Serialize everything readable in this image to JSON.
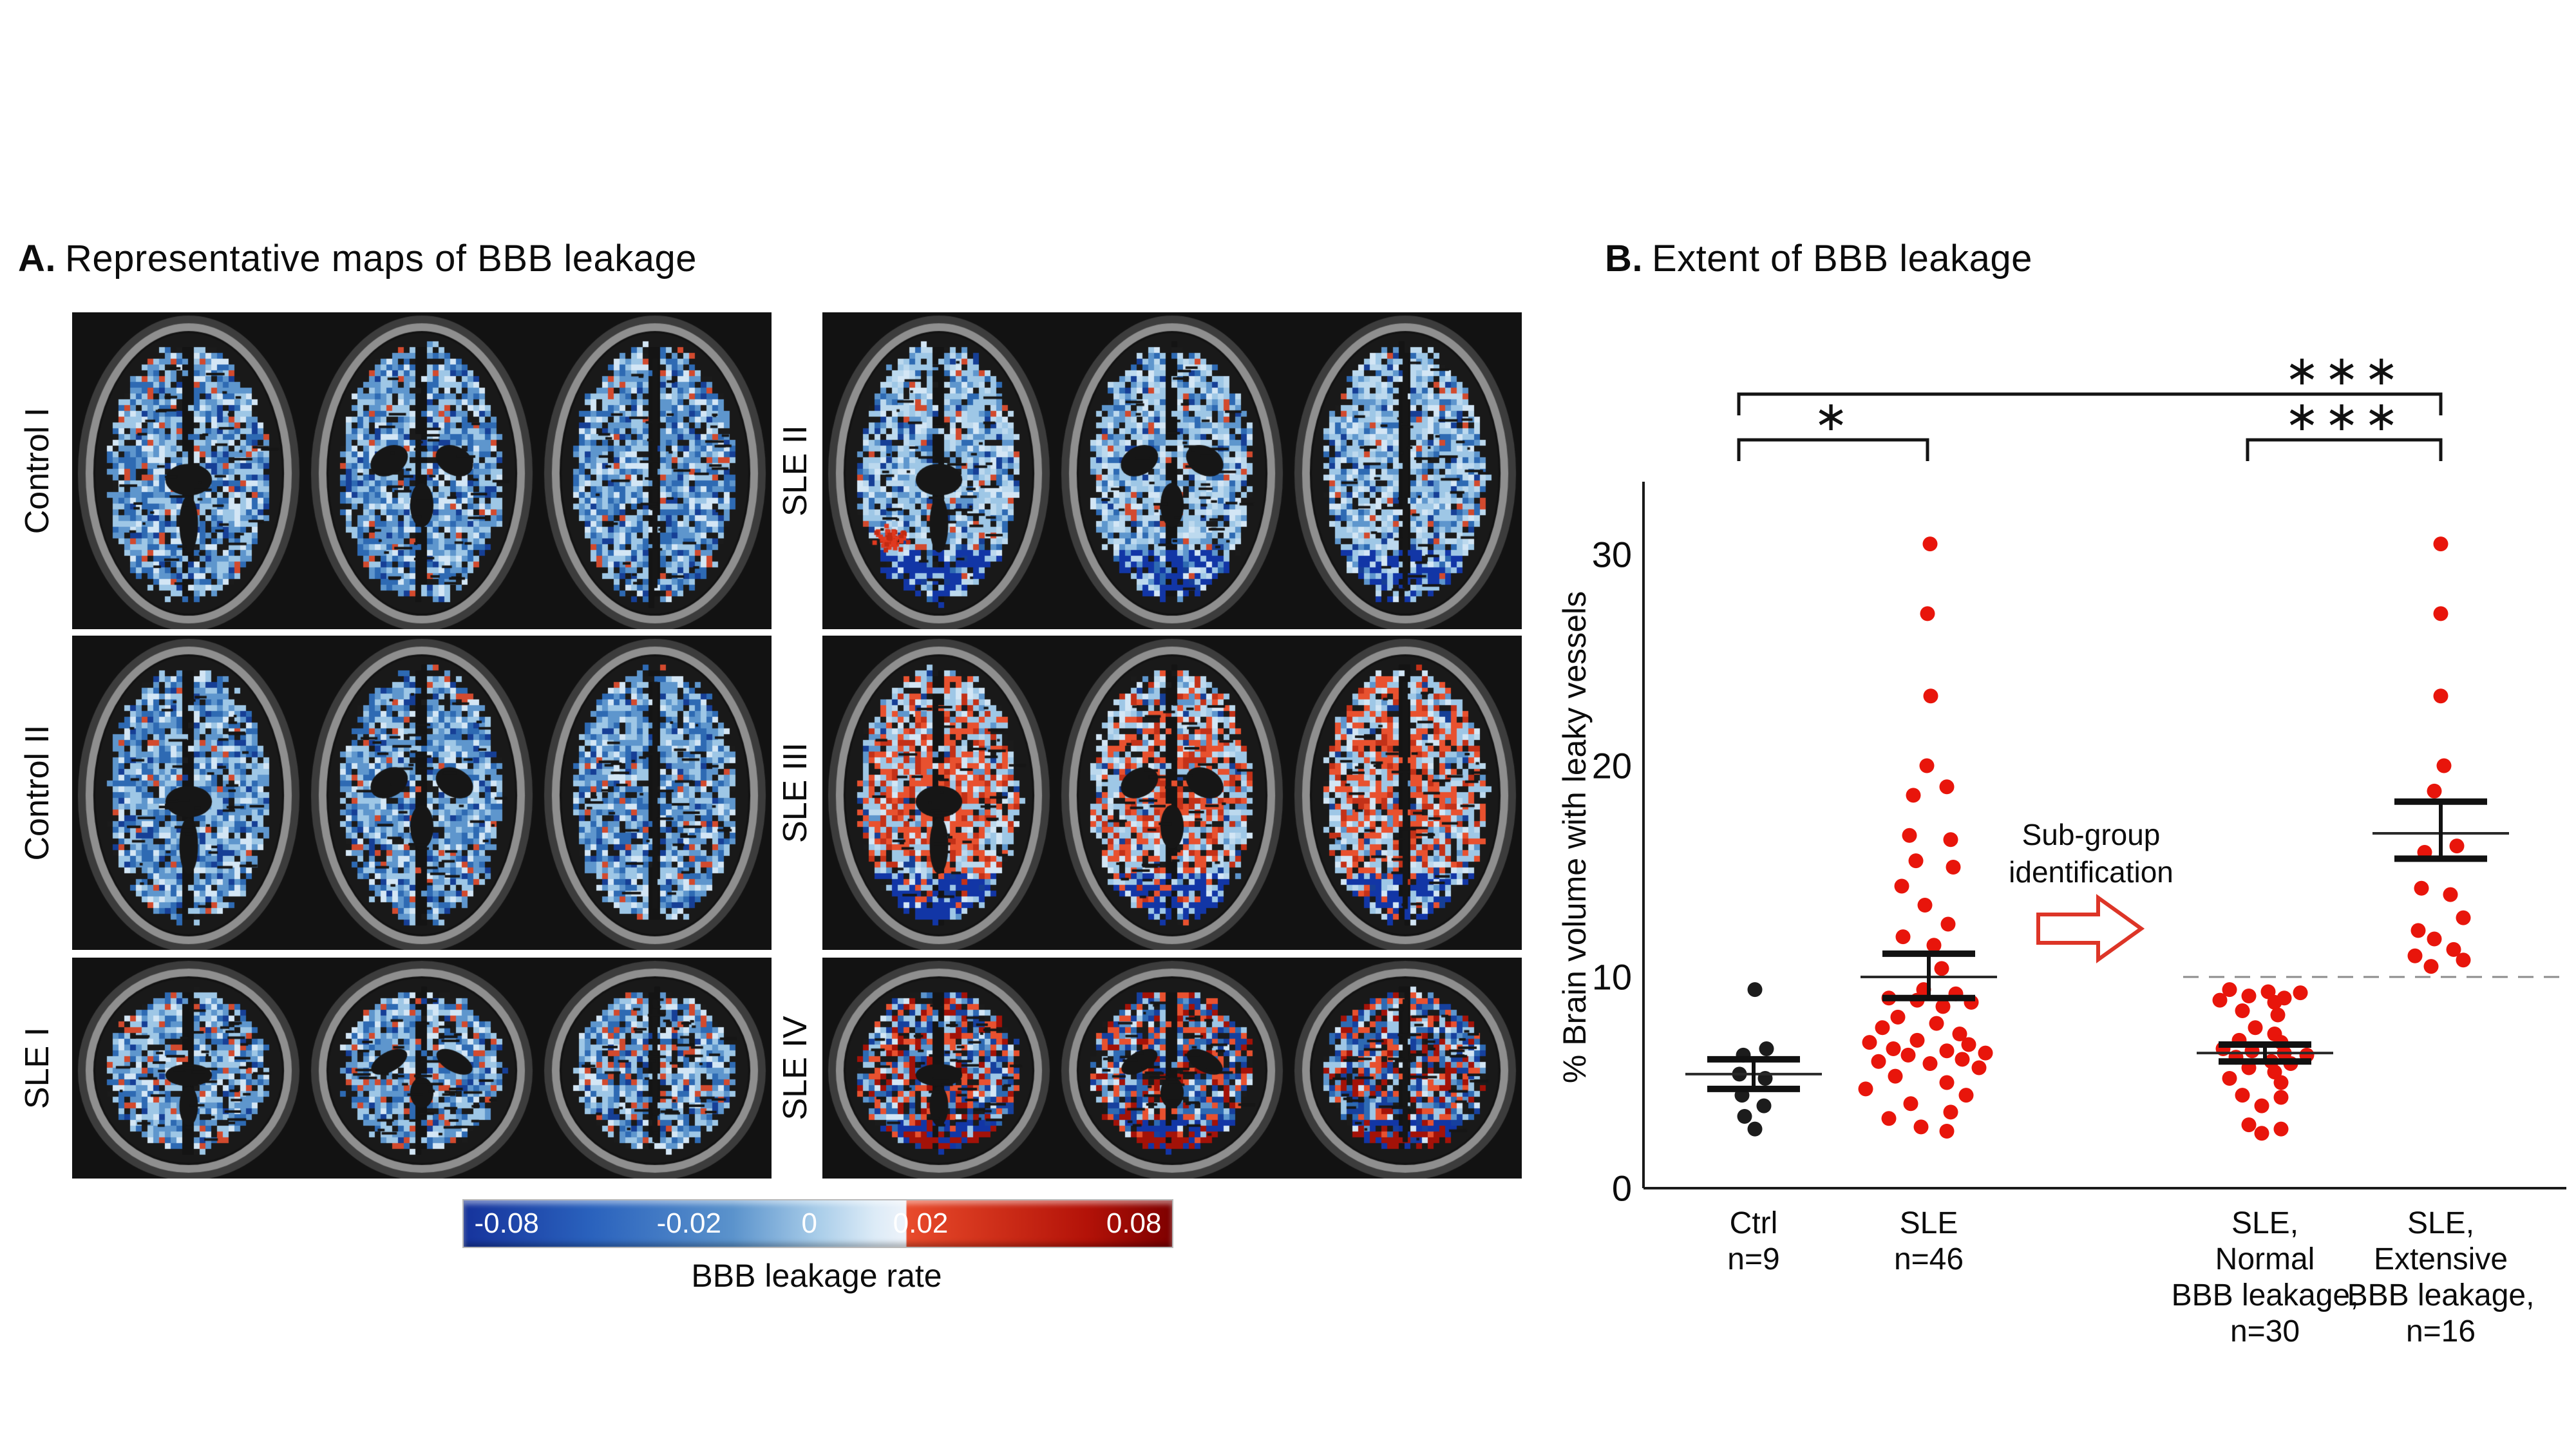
{
  "panel_a": {
    "label": "A.",
    "title": "Representative maps of BBB leakage",
    "rows": [
      {
        "label": "Control I",
        "type": "control",
        "side": "left"
      },
      {
        "label": "Control II",
        "type": "control",
        "side": "left"
      },
      {
        "label": "SLE I",
        "type": "sle1",
        "side": "left"
      },
      {
        "label": "SLE II",
        "type": "sle2",
        "side": "right"
      },
      {
        "label": "SLE III",
        "type": "sle3",
        "side": "right"
      },
      {
        "label": "SLE IV",
        "type": "sle4",
        "side": "right"
      }
    ],
    "colorbar": {
      "tick_labels": [
        "-0.08",
        "-0.02",
        "0",
        "0.02",
        "0.08"
      ],
      "tick_positions_pct": [
        1.5,
        31.8,
        48.8,
        64.5,
        98.5
      ],
      "label": "BBB leakage rate",
      "negative_color": "#16339c",
      "zero_color": "#eef3fa",
      "positive_color": "#7e0000",
      "red_onset_pct": 62.5
    },
    "brain_palettes": {
      "control": [
        [
          "#2e6ab3",
          20
        ],
        [
          "#5e96cd",
          24
        ],
        [
          "#9ec7e6",
          23
        ],
        [
          "#d3e6f5",
          12
        ],
        [
          "#163f96",
          6
        ],
        [
          "#1b1b1b",
          11
        ],
        [
          "#d24a2e",
          4
        ]
      ],
      "sle1": [
        [
          "#2e6ab3",
          16
        ],
        [
          "#5e96cd",
          22
        ],
        [
          "#9ec7e6",
          25
        ],
        [
          "#d3e6f5",
          12
        ],
        [
          "#163f96",
          5
        ],
        [
          "#1b1b1b",
          12
        ],
        [
          "#d24a2e",
          8
        ]
      ],
      "sle2": [
        [
          "#9ec7e6",
          30
        ],
        [
          "#bcd9ee",
          18
        ],
        [
          "#5e96cd",
          15
        ],
        [
          "#d3e6f5",
          10
        ],
        [
          "#2e6ab3",
          8
        ],
        [
          "#163f96",
          5
        ],
        [
          "#1b1b1b",
          10
        ],
        [
          "#d24a2e",
          4
        ]
      ],
      "sle3": [
        [
          "#9ec7e6",
          26
        ],
        [
          "#d3e6f5",
          11
        ],
        [
          "#bcd9ee",
          10
        ],
        [
          "#5e96cd",
          6
        ],
        [
          "#e8512f",
          19
        ],
        [
          "#c33118",
          9
        ],
        [
          "#163f96",
          4
        ],
        [
          "#1b1b1b",
          15
        ]
      ],
      "sle4": [
        [
          "#16409e",
          16
        ],
        [
          "#2e6ab3",
          12
        ],
        [
          "#9ec7e6",
          14
        ],
        [
          "#d3e6f5",
          6
        ],
        [
          "#e8512f",
          18
        ],
        [
          "#a31208",
          14
        ],
        [
          "#5e96cd",
          6
        ],
        [
          "#1b1b1b",
          14
        ]
      ]
    }
  },
  "panel_b": {
    "label": "B.",
    "title": "Extent of BBB leakage",
    "subgroup_note_lines": [
      "Sub-group",
      "identification"
    ],
    "arrow_color": "#dd3527"
  },
  "chart_data": {
    "type": "scatter",
    "title": "Extent of BBB leakage",
    "ylabel": "% Brain volume with leaky vessels",
    "ytick_labels": [
      "0",
      "10",
      "20",
      "30"
    ],
    "yticks": [
      0,
      10,
      20,
      30
    ],
    "ylim": [
      0,
      33.5
    ],
    "grid": false,
    "dashed_line_y": 10,
    "dot_color": "#e8150b",
    "ctrl_dot_color": "#1c1c1c",
    "groups": [
      {
        "name": "Ctrl",
        "n": 9,
        "label_lines": [
          "Ctrl",
          "n=9"
        ],
        "color": "#1c1c1c",
        "x": 2723,
        "mean": 5.4,
        "err_low": 4.7,
        "err_high": 6.1,
        "values": [
          9.4,
          6.6,
          6.3,
          5.4,
          5.2,
          4.4,
          3.9,
          3.4,
          2.8
        ],
        "jitter": [
          2,
          20,
          -16,
          -22,
          18,
          -18,
          16,
          -14,
          2
        ]
      },
      {
        "name": "SLE",
        "n": 46,
        "label_lines": [
          "SLE",
          "n=46"
        ],
        "color": "#e8150b",
        "x": 2995,
        "mean": 10.0,
        "err_low": 9.0,
        "err_high": 11.1,
        "values": [
          30.5,
          27.2,
          23.3,
          20.0,
          19.0,
          18.6,
          16.7,
          16.5,
          15.5,
          15.2,
          14.3,
          13.4,
          12.5,
          11.9,
          11.5,
          10.4,
          9.4,
          9.2,
          9.0,
          8.9,
          8.8,
          8.6,
          8.1,
          7.8,
          7.6,
          7.3,
          7.0,
          6.9,
          6.8,
          6.6,
          6.5,
          6.4,
          6.3,
          6.1,
          6.0,
          5.9,
          5.7,
          5.3,
          5.0,
          4.7,
          4.4,
          4.0,
          3.6,
          3.3,
          2.9,
          2.7
        ],
        "jitter": [
          2,
          -2,
          3,
          -3,
          28,
          -24,
          -30,
          34,
          -20,
          38,
          -42,
          -6,
          30,
          -40,
          8,
          20,
          -8,
          42,
          -62,
          -18,
          66,
          22,
          -48,
          12,
          -72,
          48,
          -18,
          -92,
          62,
          -55,
          28,
          88,
          -32,
          52,
          -78,
          2,
          78,
          -52,
          28,
          -98,
          58,
          -28,
          34,
          -62,
          -12,
          28
        ]
      },
      {
        "name": "SLE, Normal BBB leakage",
        "n": 30,
        "label_lines": [
          "SLE,",
          "Normal",
          "BBB leakage,",
          "n=30"
        ],
        "color": "#e8150b",
        "x": 3517,
        "mean": 6.4,
        "err_low": 6.0,
        "err_high": 6.8,
        "values": [
          9.4,
          9.3,
          9.25,
          9.1,
          9.0,
          8.9,
          8.8,
          8.4,
          8.2,
          7.6,
          7.3,
          7.0,
          6.9,
          6.6,
          6.5,
          6.4,
          6.3,
          6.2,
          6.0,
          5.9,
          5.7,
          5.5,
          5.2,
          5.0,
          4.4,
          4.3,
          3.9,
          3.0,
          2.8,
          2.6
        ],
        "jitter": [
          -55,
          5,
          55,
          -25,
          30,
          -70,
          15,
          -35,
          20,
          -15,
          15,
          -40,
          25,
          -65,
          -20,
          30,
          65,
          -45,
          10,
          40,
          -25,
          15,
          -55,
          25,
          -35,
          25,
          -5,
          -25,
          25,
          -5
        ]
      },
      {
        "name": "SLE, Extensive BBB leakage",
        "n": 16,
        "label_lines": [
          "SLE,",
          "Extensive",
          "BBB leakage,",
          "n=16"
        ],
        "color": "#e8150b",
        "x": 3790,
        "mean": 16.8,
        "err_low": 15.6,
        "err_high": 18.3,
        "values": [
          30.5,
          27.2,
          23.3,
          20.0,
          18.8,
          16.2,
          15.9,
          14.2,
          13.9,
          12.8,
          12.2,
          11.8,
          11.3,
          11.0,
          10.8,
          10.5
        ],
        "jitter": [
          0,
          0,
          0,
          5,
          -10,
          25,
          -25,
          -30,
          15,
          35,
          -35,
          -10,
          20,
          -40,
          35,
          -15
        ]
      }
    ],
    "significance": [
      {
        "label": "*",
        "x1": 2700,
        "x2": 2993,
        "y": 683,
        "label_x": 2847,
        "label_y": 668
      },
      {
        "label": "***",
        "x1": 2700,
        "x2": 3790,
        "y": 612,
        "label_x": 3640,
        "label_y": 597
      },
      {
        "label": "***",
        "x1": 3490,
        "x2": 3790,
        "y": 683,
        "label_x": 3640,
        "label_y": 668
      }
    ],
    "legend": null
  }
}
